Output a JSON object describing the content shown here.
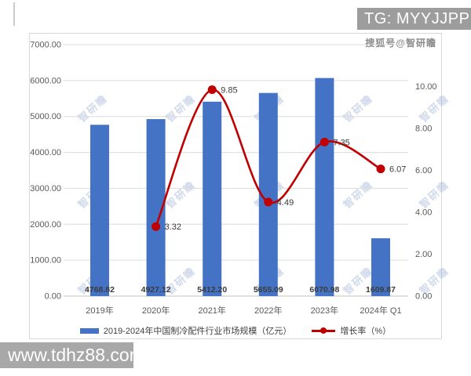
{
  "overlay": {
    "tg_text": "TG: MYYJJPP",
    "souhu_text": "搜狐号@智研瞻",
    "url_text": "www.tdhz88.com",
    "watermark_text": "智研瞻"
  },
  "chart_data": {
    "type": "bar",
    "subtype": "bar+line combo, dual axis",
    "categories": [
      "2019年",
      "2020年",
      "2021年",
      "2022年",
      "2023年",
      "2024年 Q1"
    ],
    "series": [
      {
        "name": "2019-2024年中国制冷配件行业市场规模（亿元）",
        "type": "bar",
        "axis": "left",
        "values": [
          4768.82,
          4927.12,
          5412.2,
          5655.09,
          6070.98,
          1609.87
        ],
        "labels": [
          "4768.82",
          "4927.12",
          "5412.20",
          "5655.09",
          "6070.98",
          "1609.87"
        ]
      },
      {
        "name": "增长率（%）",
        "type": "line",
        "axis": "right",
        "values": [
          null,
          3.32,
          9.85,
          4.49,
          7.35,
          6.07
        ],
        "labels": [
          "3.32",
          "9.85",
          "4.49",
          "7.35",
          "6.07"
        ]
      }
    ],
    "left_axis": {
      "min": 0,
      "max": 7000,
      "tick_values": [
        7000,
        6000,
        5000,
        4000,
        3000,
        2000,
        1000,
        0
      ],
      "tick_labels": [
        "7000.00",
        "6000.00",
        "5000.00",
        "4000.00",
        "3000.00",
        "2000.00",
        "1000.00",
        "0.00"
      ]
    },
    "right_axis": {
      "min": 0,
      "max": 12,
      "tick_values": [
        10,
        8,
        6,
        4,
        2,
        0
      ],
      "tick_labels": [
        "10.00",
        "8.00",
        "6.00",
        "4.00",
        "2.00",
        "0.00"
      ]
    },
    "colors": {
      "bar": "#4472c4",
      "line": "#c00000",
      "grid": "#dcdcdc",
      "baseline": "#c0c0c0",
      "axis_text": "#595959",
      "label_text": "#3b3b3b"
    },
    "title": "",
    "grid": true,
    "legend_position": "bottom"
  }
}
